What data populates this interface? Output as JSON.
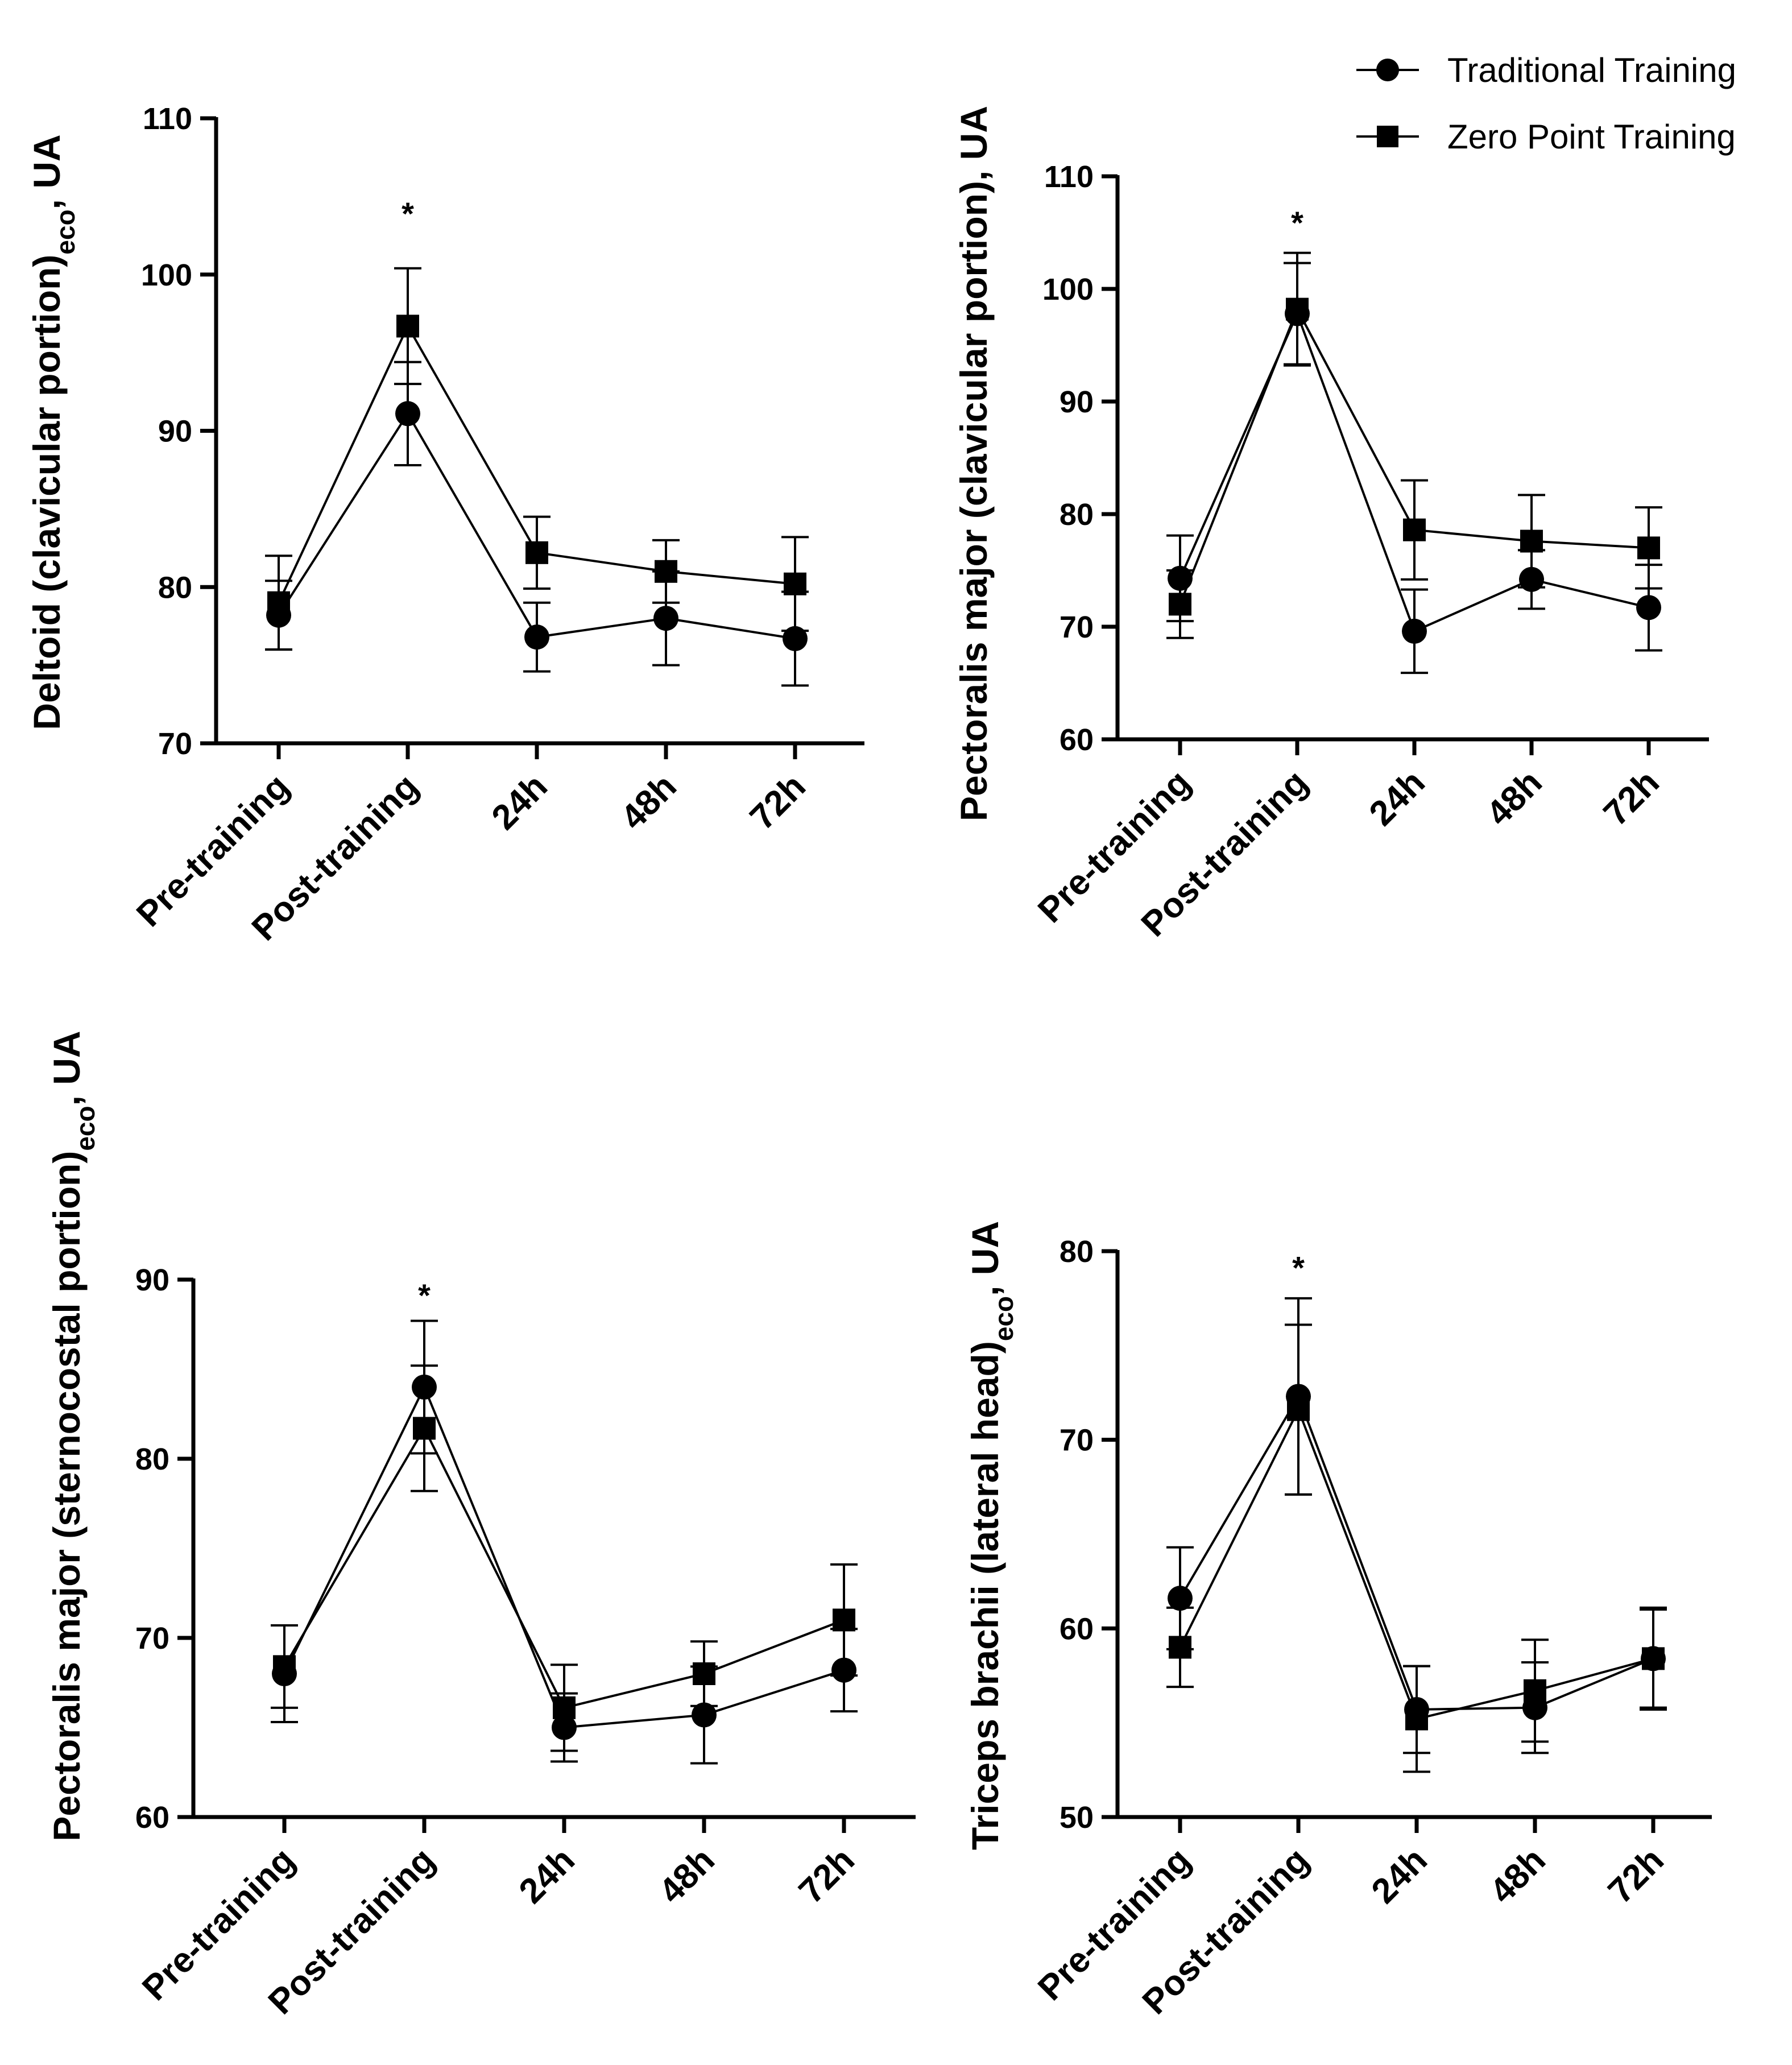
{
  "legend": {
    "entries": [
      {
        "label": "Traditional Training",
        "marker": "circle"
      },
      {
        "label": "Zero Point Training",
        "marker": "square"
      }
    ]
  },
  "chart_data": [
    {
      "type": "line",
      "ylabel_main": "Deltoid (clavicular portion)",
      "ylabel_sub": "eco",
      "ylabel_end": ", UA",
      "categories": [
        "Pre-training",
        "Post-training",
        "24h",
        "48h",
        "72h"
      ],
      "ylim": [
        70,
        110
      ],
      "yticks": [
        "70",
        "80",
        "90",
        "100",
        "110"
      ],
      "significance": {
        "category_index": 1,
        "symbol": "*",
        "y": 104
      },
      "series": [
        {
          "name": "Traditional Training",
          "marker": "circle",
          "values": [
            78.2,
            91.1,
            76.8,
            78.0,
            76.7
          ],
          "errors": [
            2.2,
            3.3,
            2.2,
            3.0,
            3.0
          ]
        },
        {
          "name": "Zero Point Training",
          "marker": "square",
          "values": [
            79.0,
            96.7,
            82.2,
            81.0,
            80.2
          ],
          "errors": [
            3.0,
            3.7,
            2.3,
            2.0,
            3.0
          ]
        }
      ]
    },
    {
      "type": "line",
      "ylabel_main": "Pectoralis major (clavicular portion), UA",
      "ylabel_sub": "",
      "ylabel_end": "",
      "categories": [
        "Pre-training",
        "Post-training",
        "24h",
        "48h",
        "72h"
      ],
      "ylim": [
        60,
        110
      ],
      "yticks": [
        "60",
        "70",
        "80",
        "90",
        "100",
        "110"
      ],
      "significance": {
        "category_index": 1,
        "symbol": "*",
        "y": 106
      },
      "series": [
        {
          "name": "Traditional Training",
          "marker": "circle",
          "values": [
            74.3,
            97.8,
            69.6,
            74.2,
            71.7
          ],
          "errors": [
            3.8,
            4.5,
            3.7,
            2.6,
            3.8
          ]
        },
        {
          "name": "Zero Point Training",
          "marker": "square",
          "values": [
            72.0,
            98.2,
            78.6,
            77.6,
            77.0
          ],
          "errors": [
            3.0,
            5.0,
            4.4,
            4.1,
            3.6
          ]
        }
      ]
    },
    {
      "type": "line",
      "ylabel_main": "Pectoralis major (sternocostal portion)",
      "ylabel_sub": "eco",
      "ylabel_end": ", UA",
      "categories": [
        "Pre-training",
        "Post-training",
        "24h",
        "48h",
        "72h"
      ],
      "ylim": [
        60,
        90
      ],
      "yticks": [
        "60",
        "70",
        "80",
        "90"
      ],
      "significance": {
        "category_index": 1,
        "symbol": "*",
        "y": 89.2
      },
      "series": [
        {
          "name": "Traditional Training",
          "marker": "circle",
          "values": [
            68.0,
            84.0,
            65.0,
            65.7,
            68.2
          ],
          "errors": [
            2.7,
            3.7,
            1.9,
            2.7,
            2.3
          ]
        },
        {
          "name": "Zero Point Training",
          "marker": "square",
          "values": [
            68.4,
            81.7,
            66.1,
            68.0,
            71.0
          ],
          "errors": [
            2.3,
            3.5,
            2.4,
            1.8,
            3.1
          ]
        }
      ]
    },
    {
      "type": "line",
      "ylabel_main": "Triceps brachii (lateral head)",
      "ylabel_sub": "eco",
      "ylabel_end": ", UA",
      "categories": [
        "Pre-training",
        "Post-training",
        "24h",
        "48h",
        "72h"
      ],
      "ylim": [
        50,
        80
      ],
      "yticks": [
        "50",
        "60",
        "70",
        "80"
      ],
      "significance": {
        "category_index": 1,
        "symbol": "*",
        "y": 79.2
      },
      "series": [
        {
          "name": "Traditional Training",
          "marker": "circle",
          "values": [
            61.6,
            72.3,
            55.7,
            55.8,
            58.4
          ],
          "errors": [
            2.7,
            5.2,
            2.3,
            2.4,
            2.6
          ]
        },
        {
          "name": "Zero Point Training",
          "marker": "square",
          "values": [
            59.0,
            71.6,
            55.2,
            56.7,
            58.4
          ],
          "errors": [
            2.1,
            4.5,
            2.8,
            2.7,
            2.7
          ]
        }
      ]
    }
  ]
}
